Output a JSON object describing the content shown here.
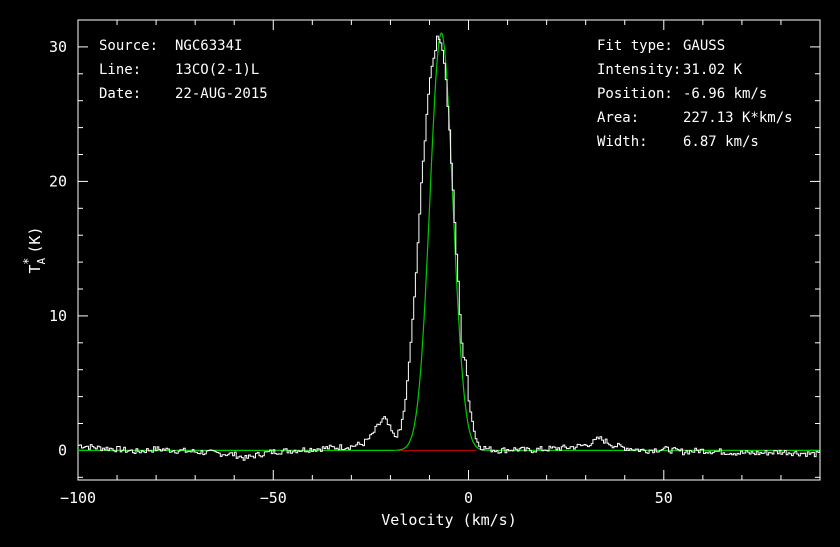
{
  "chart_data": {
    "type": "line",
    "xlabel": "Velocity (km/s)",
    "ylabel": "T",
    "ylabel_sub": "A",
    "ylabel_sup": "*",
    "ylabel_unit": "(K)",
    "xlim": [
      -100,
      90
    ],
    "ylim": [
      -2.2,
      32
    ],
    "x_ticks": [
      -100,
      -50,
      0,
      50
    ],
    "y_ticks": [
      0,
      10,
      20,
      30
    ],
    "grid": false,
    "colors": {
      "background": "#000000",
      "axes": "#ffffff",
      "spectrum": "#ffffff",
      "fit": "#00cc00",
      "baseline": "#cc0000"
    },
    "info_left": [
      {
        "key": "Source:",
        "value": "NGC6334I"
      },
      {
        "key": "Line:",
        "value": "13CO(2-1)L"
      },
      {
        "key": "Date:",
        "value": "22-AUG-2015"
      }
    ],
    "info_right": [
      {
        "key": "Fit type:",
        "value": "GAUSS"
      },
      {
        "key": "Intensity:",
        "value": "31.02 K"
      },
      {
        "key": "Position:",
        "value": "-6.96 km/s"
      },
      {
        "key": "Area:",
        "value": "227.13 K*km/s"
      },
      {
        "key": "Width:",
        "value": "6.87 km/s"
      }
    ],
    "fit": {
      "amplitude": 31.02,
      "center": -6.96,
      "fwhm": 6.87
    },
    "baseline_range": [
      -18,
      2
    ],
    "series": [
      {
        "x": [
          -100,
          -95,
          -90,
          -85,
          -80,
          -75,
          -70,
          -65,
          -60,
          -57,
          -55,
          -52,
          -50,
          -45,
          -40,
          -35,
          -30,
          -27,
          -25,
          -23,
          -21.5,
          -20,
          -19,
          -17.5,
          -16,
          -14,
          -12,
          -10,
          -8,
          -7,
          -6,
          -5,
          -3,
          -1.5,
          -0.5,
          0,
          1,
          2,
          3,
          5,
          8,
          12,
          15,
          20,
          25,
          28,
          30,
          32,
          33.5,
          35,
          37,
          40,
          45,
          50,
          55,
          60,
          65,
          70,
          75,
          80,
          85,
          90
        ],
        "y": [
          0.4,
          0.2,
          0.1,
          -0.1,
          0.1,
          0.0,
          -0.1,
          -0.2,
          -0.3,
          -0.6,
          -0.4,
          -0.2,
          -0.1,
          0.0,
          0.1,
          0.2,
          0.3,
          0.5,
          1.0,
          1.9,
          2.4,
          1.6,
          1.0,
          1.4,
          3.8,
          10.5,
          19.8,
          27.5,
          30.6,
          30.5,
          28.6,
          24.6,
          14.5,
          7.2,
          6.3,
          4.1,
          2.2,
          0.8,
          0.3,
          0.1,
          0.0,
          0.1,
          0.0,
          0.1,
          0.2,
          0.3,
          0.4,
          0.6,
          0.9,
          0.7,
          0.4,
          0.2,
          0.0,
          0.1,
          -0.1,
          0.0,
          -0.1,
          -0.2,
          -0.2,
          -0.1,
          -0.2,
          -0.3
        ]
      }
    ]
  }
}
